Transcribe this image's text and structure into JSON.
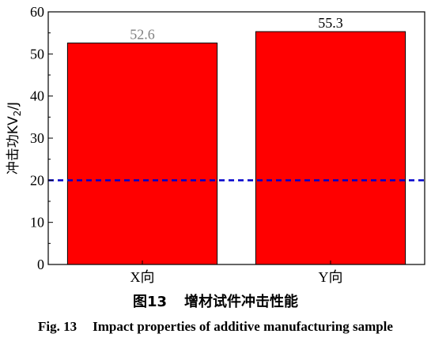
{
  "chart_data": {
    "type": "bar",
    "categories": [
      "X向",
      "Y向"
    ],
    "values": [
      52.6,
      55.3
    ],
    "data_labels": [
      "52.6",
      "55.3"
    ],
    "data_label_colors": [
      "#808080",
      "#000000"
    ],
    "bar_color": "#ff0000",
    "ylabel": "冲击功KV2/J",
    "ylim": [
      0,
      60
    ],
    "yticks": [
      0,
      10,
      20,
      30,
      40,
      50,
      60
    ],
    "reference_line": {
      "value": 20,
      "style": "dashed",
      "color": "#0000cc"
    },
    "grid": false
  },
  "caption": {
    "cn_number": "图13",
    "cn_title": "增材试件冲击性能",
    "en_number": "Fig. 13",
    "en_title": "Impact properties of additive manufacturing sample"
  }
}
